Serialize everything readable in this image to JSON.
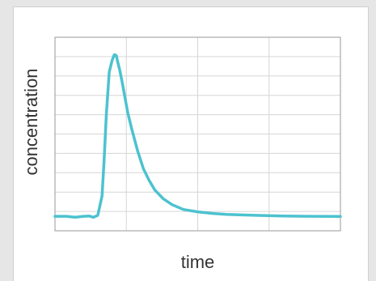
{
  "colors": {
    "line": "#4cc2cf",
    "grid": "#d6d6d6",
    "axis": "#9a9a9a",
    "background": "#ffffff"
  },
  "chart_data": {
    "type": "line",
    "xlabel": "time",
    "ylabel": "concentration",
    "grid": true,
    "xlim": [
      0,
      100
    ],
    "ylim": [
      0,
      100
    ],
    "x_gridlines": [
      25,
      50,
      75
    ],
    "y_gridlines": [
      10,
      20,
      30,
      40,
      50,
      60,
      70,
      80,
      90
    ],
    "series": [
      {
        "x": [
          0,
          4,
          7,
          10,
          12,
          13.5,
          15,
          16.5,
          17.2,
          18,
          19,
          20,
          20.8,
          21.5,
          22,
          22.7,
          23.5,
          24.5,
          25.5,
          27,
          29,
          31,
          33,
          35,
          38,
          41,
          45,
          50,
          55,
          60,
          70,
          80,
          90,
          100
        ],
        "y": [
          7.5,
          7.5,
          7.0,
          7.5,
          7.6,
          7.0,
          8.0,
          18.0,
          36.0,
          60.0,
          82.0,
          88.0,
          91.0,
          90.5,
          87.0,
          83.0,
          77.0,
          69.0,
          61.0,
          52.0,
          41.0,
          32.0,
          26.0,
          21.0,
          16.5,
          13.5,
          11.0,
          9.8,
          9.0,
          8.5,
          8.0,
          7.6,
          7.5,
          7.4
        ]
      }
    ]
  }
}
